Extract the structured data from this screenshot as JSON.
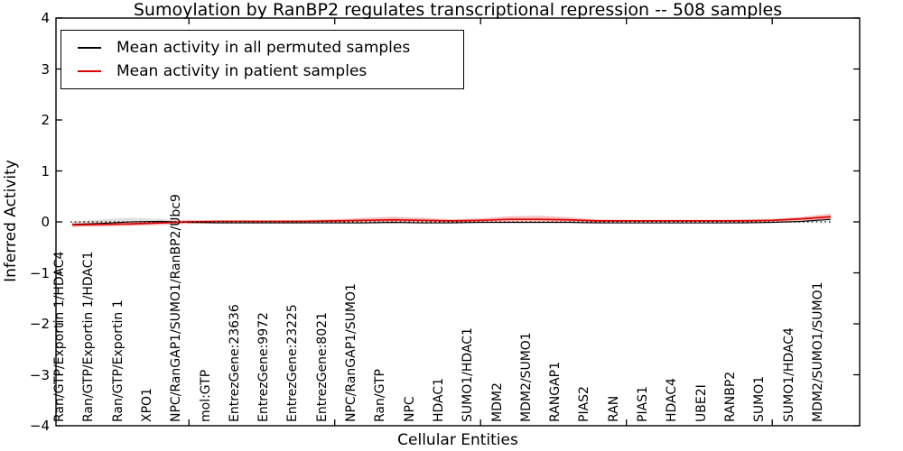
{
  "window": {
    "background": "#ffffff"
  },
  "chart_data": {
    "type": "line",
    "title": "Sumoylation by RanBP2 regulates transcriptional repression -- 508 samples",
    "xlabel": "Cellular Entities",
    "ylabel": "Inferred Activity",
    "ylim": [
      -4,
      4
    ],
    "yticks": [
      4,
      3,
      2,
      1,
      0,
      -1,
      -2,
      -3,
      -4
    ],
    "grid": false,
    "zero_line_style": "dotted",
    "legend_position": "upper left",
    "xtick_major_indices": [
      4,
      9,
      14,
      19,
      24
    ],
    "categories": [
      "Ran/GTP/Exportin 1/HDAC4",
      "Ran/GTP/Exportin 1/HDAC1",
      "Ran/GTP/Exportin 1",
      "XPO1",
      "NPC/RanGAP1/SUMO1/RanBP2/Ubc9",
      "mol:GTP",
      "EntrezGene:23636",
      "EntrezGene:9972",
      "EntrezGene:23225",
      "EntrezGene:8021",
      "NPC/RanGAP1/SUMO1",
      "Ran/GTP",
      "NPC",
      "HDAC1",
      "SUMO1/HDAC1",
      "MDM2",
      "MDM2/SUMO1",
      "RANGAP1",
      "PIAS2",
      "RAN",
      "PIAS1",
      "HDAC4",
      "UBE2I",
      "RANBP2",
      "SUMO1",
      "SUMO1/HDAC4",
      "MDM2/SUMO1/SUMO1"
    ],
    "series": [
      {
        "name": "Mean activity in all permuted samples",
        "color": "#000000",
        "band_color": "#d9d9d9",
        "line_width": 1.1,
        "values": [
          -0.05,
          -0.03,
          0.0,
          0.01,
          -0.01,
          -0.02,
          -0.02,
          -0.02,
          -0.02,
          -0.02,
          -0.02,
          -0.01,
          -0.02,
          -0.02,
          -0.01,
          -0.01,
          -0.01,
          -0.01,
          -0.02,
          -0.02,
          -0.02,
          -0.02,
          -0.02,
          -0.02,
          -0.01,
          0.01,
          0.05
        ],
        "band_hi": [
          0.0,
          0.05,
          0.08,
          0.06,
          0.01,
          -0.01,
          -0.01,
          -0.01,
          -0.01,
          -0.01,
          0.0,
          0.0,
          -0.01,
          -0.01,
          0.0,
          0.0,
          0.0,
          0.0,
          -0.01,
          -0.01,
          -0.01,
          -0.01,
          -0.01,
          -0.01,
          0.0,
          0.03,
          0.08
        ],
        "band_lo": [
          -0.08,
          -0.08,
          -0.06,
          -0.04,
          -0.03,
          -0.03,
          -0.03,
          -0.03,
          -0.03,
          -0.03,
          -0.04,
          -0.03,
          -0.03,
          -0.03,
          -0.02,
          -0.02,
          -0.02,
          -0.02,
          -0.03,
          -0.03,
          -0.03,
          -0.03,
          -0.03,
          -0.03,
          -0.02,
          -0.01,
          0.02
        ]
      },
      {
        "name": "Mean activity in patient samples",
        "color": "#dd0000",
        "band_color": "#f5b2b2",
        "line_width": 1.7,
        "values": [
          -0.06,
          -0.05,
          -0.04,
          -0.02,
          0.0,
          0.01,
          0.01,
          0.01,
          0.01,
          0.02,
          0.03,
          0.04,
          0.03,
          0.02,
          0.03,
          0.05,
          0.05,
          0.04,
          0.02,
          0.02,
          0.02,
          0.02,
          0.02,
          0.02,
          0.03,
          0.06,
          0.1
        ],
        "band_hi": [
          -0.02,
          -0.01,
          0.0,
          0.02,
          0.04,
          0.03,
          0.03,
          0.03,
          0.04,
          0.05,
          0.08,
          0.1,
          0.08,
          0.05,
          0.07,
          0.11,
          0.12,
          0.09,
          0.05,
          0.04,
          0.04,
          0.04,
          0.04,
          0.05,
          0.06,
          0.1,
          0.16
        ],
        "band_lo": [
          -0.1,
          -0.09,
          -0.08,
          -0.06,
          -0.04,
          -0.01,
          -0.01,
          -0.01,
          -0.02,
          -0.01,
          -0.02,
          -0.02,
          -0.02,
          -0.01,
          -0.01,
          -0.01,
          -0.02,
          -0.01,
          -0.01,
          0.0,
          0.0,
          0.0,
          0.0,
          -0.01,
          0.0,
          0.02,
          0.05
        ]
      }
    ]
  },
  "legend": {
    "items": [
      {
        "label": "Mean activity in all permuted samples",
        "color": "#000000"
      },
      {
        "label": "Mean activity in patient samples",
        "color": "#dd0000"
      }
    ]
  },
  "colors": {
    "axis": "#000000",
    "zero_line": "#000000",
    "permuted_line": "#000000",
    "patient_line": "#dd0000",
    "permuted_band": "#d9d9d9",
    "patient_band": "#f5b2b2",
    "background": "#ffffff"
  }
}
